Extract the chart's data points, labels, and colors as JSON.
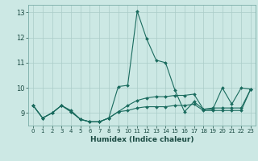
{
  "xlabel": "Humidex (Indice chaleur)",
  "background_color": "#cce8e4",
  "grid_color": "#aaccc8",
  "line_color": "#1a6b5e",
  "xlim": [
    -0.5,
    23.5
  ],
  "ylim": [
    8.5,
    13.3
  ],
  "yticks": [
    9,
    10,
    11,
    12,
    13
  ],
  "xticks": [
    0,
    1,
    2,
    3,
    4,
    5,
    6,
    7,
    8,
    9,
    10,
    11,
    12,
    13,
    14,
    15,
    16,
    17,
    18,
    19,
    20,
    21,
    22,
    23
  ],
  "series": [
    [
      9.3,
      8.8,
      9.0,
      9.3,
      9.1,
      8.75,
      8.65,
      8.65,
      8.8,
      10.05,
      10.1,
      13.05,
      11.95,
      11.1,
      11.0,
      9.9,
      9.05,
      9.45,
      9.15,
      9.15,
      10.0,
      9.35,
      10.0,
      9.95
    ],
    [
      9.3,
      8.8,
      9.0,
      9.3,
      9.05,
      8.75,
      8.65,
      8.65,
      8.8,
      9.05,
      9.3,
      9.5,
      9.6,
      9.65,
      9.65,
      9.7,
      9.7,
      9.75,
      9.15,
      9.2,
      9.2,
      9.2,
      9.2,
      9.95
    ],
    [
      9.3,
      8.8,
      9.0,
      9.3,
      9.05,
      8.75,
      8.65,
      8.65,
      8.8,
      9.05,
      9.1,
      9.2,
      9.25,
      9.25,
      9.25,
      9.3,
      9.3,
      9.35,
      9.1,
      9.1,
      9.1,
      9.1,
      9.1,
      9.95
    ]
  ]
}
